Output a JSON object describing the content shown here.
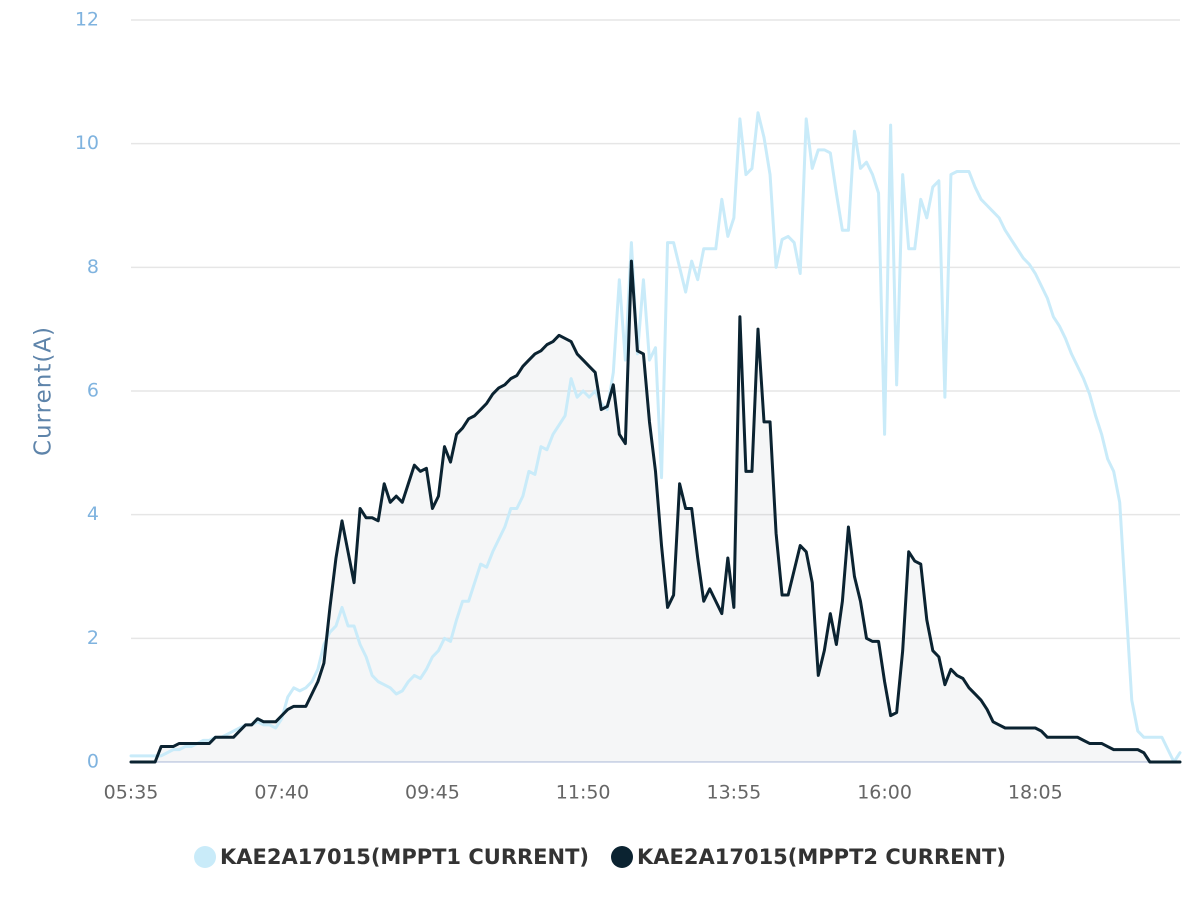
{
  "chart_data": {
    "type": "line",
    "y_label": "Current(A)",
    "categories": [
      "05:35",
      null,
      null,
      null,
      null,
      null,
      null,
      null,
      null,
      null,
      null,
      null,
      null,
      null,
      null,
      null,
      null,
      null,
      null,
      null,
      null,
      null,
      null,
      null,
      null,
      "07:40",
      null,
      null,
      null,
      null,
      null,
      null,
      null,
      null,
      null,
      null,
      null,
      null,
      null,
      null,
      null,
      null,
      null,
      null,
      null,
      null,
      null,
      null,
      null,
      null,
      "09:45",
      null,
      null,
      null,
      null,
      null,
      null,
      null,
      null,
      null,
      null,
      null,
      null,
      null,
      null,
      null,
      null,
      null,
      null,
      null,
      null,
      null,
      null,
      null,
      null,
      "11:50",
      null,
      null,
      null,
      null,
      null,
      null,
      null,
      null,
      null,
      null,
      null,
      null,
      null,
      null,
      null,
      null,
      null,
      null,
      null,
      null,
      null,
      null,
      null,
      null,
      "13:55",
      null,
      null,
      null,
      null,
      null,
      null,
      null,
      null,
      null,
      null,
      null,
      null,
      null,
      null,
      null,
      null,
      null,
      null,
      null,
      null,
      null,
      null,
      null,
      null,
      "16:00",
      null,
      null,
      null,
      null,
      null,
      null,
      null,
      null,
      null,
      null,
      null,
      null,
      null,
      null,
      null,
      null,
      null,
      null,
      null,
      null,
      null,
      null,
      null,
      null,
      "18:05",
      null,
      null,
      null,
      null,
      null,
      null,
      null,
      null,
      null,
      null,
      null,
      null,
      null,
      null,
      null,
      null,
      null,
      null,
      null,
      null,
      null,
      null,
      null,
      null
    ],
    "series": [
      {
        "name": "KAE2A17015(MPPT1 CURRENT)",
        "color": "#c9ebf9",
        "area": false,
        "values": [
          0.1,
          0.1,
          0.1,
          0.1,
          0.1,
          0.1,
          0.15,
          0.2,
          0.2,
          0.25,
          0.25,
          0.3,
          0.35,
          0.35,
          0.4,
          0.4,
          0.45,
          0.5,
          0.55,
          0.6,
          0.6,
          0.65,
          0.6,
          0.6,
          0.55,
          0.7,
          1.05,
          1.2,
          1.15,
          1.2,
          1.3,
          1.5,
          1.9,
          2.1,
          2.2,
          2.5,
          2.2,
          2.2,
          1.9,
          1.7,
          1.4,
          1.3,
          1.25,
          1.2,
          1.1,
          1.15,
          1.3,
          1.4,
          1.35,
          1.5,
          1.7,
          1.8,
          2.0,
          1.95,
          2.3,
          2.6,
          2.6,
          2.9,
          3.2,
          3.15,
          3.4,
          3.6,
          3.8,
          4.1,
          4.1,
          4.3,
          4.7,
          4.65,
          5.1,
          5.05,
          5.3,
          5.45,
          5.6,
          6.2,
          5.9,
          6.0,
          5.9,
          6.0,
          5.8,
          5.7,
          6.3,
          7.8,
          6.5,
          8.4,
          6.6,
          7.8,
          6.5,
          6.7,
          4.6,
          8.4,
          8.4,
          8.0,
          7.6,
          8.1,
          7.8,
          8.3,
          8.3,
          8.3,
          9.1,
          8.5,
          8.8,
          10.4,
          9.5,
          9.6,
          10.5,
          10.1,
          9.5,
          8.0,
          8.45,
          8.5,
          8.4,
          7.9,
          10.4,
          9.6,
          9.9,
          9.9,
          9.85,
          9.2,
          8.6,
          8.6,
          10.2,
          9.6,
          9.7,
          9.5,
          9.2,
          5.3,
          10.3,
          6.1,
          9.5,
          8.3,
          8.3,
          9.1,
          8.8,
          9.3,
          9.4,
          5.9,
          9.5,
          9.55,
          9.55,
          9.55,
          9.3,
          9.1,
          9.0,
          8.9,
          8.8,
          8.6,
          8.45,
          8.3,
          8.15,
          8.05,
          7.9,
          7.7,
          7.5,
          7.2,
          7.05,
          6.85,
          6.6,
          6.4,
          6.2,
          5.95,
          5.6,
          5.3,
          4.9,
          4.7,
          4.2,
          2.6,
          1.0,
          0.5,
          0.4,
          0.4,
          0.4,
          0.4,
          0.2,
          0,
          0.15
        ]
      },
      {
        "name": "KAE2A17015(MPPT2 CURRENT)",
        "color": "#0b2331",
        "area": true,
        "values": [
          0,
          0,
          0,
          0,
          0,
          0.25,
          0.25,
          0.25,
          0.3,
          0.3,
          0.3,
          0.3,
          0.3,
          0.3,
          0.4,
          0.4,
          0.4,
          0.4,
          0.5,
          0.6,
          0.6,
          0.7,
          0.65,
          0.65,
          0.65,
          0.75,
          0.85,
          0.9,
          0.9,
          0.9,
          1.1,
          1.3,
          1.6,
          2.5,
          3.3,
          3.9,
          3.4,
          2.9,
          4.1,
          3.95,
          3.95,
          3.9,
          4.5,
          4.2,
          4.3,
          4.2,
          4.5,
          4.8,
          4.7,
          4.75,
          4.1,
          4.3,
          5.1,
          4.85,
          5.3,
          5.4,
          5.55,
          5.6,
          5.7,
          5.8,
          5.95,
          6.05,
          6.1,
          6.2,
          6.25,
          6.4,
          6.5,
          6.6,
          6.65,
          6.75,
          6.8,
          6.9,
          6.85,
          6.8,
          6.6,
          6.5,
          6.4,
          6.3,
          5.7,
          5.75,
          6.1,
          5.3,
          5.15,
          8.1,
          6.65,
          6.6,
          5.5,
          4.7,
          3.5,
          2.5,
          2.7,
          4.5,
          4.1,
          4.1,
          3.3,
          2.6,
          2.8,
          2.6,
          2.4,
          3.3,
          2.5,
          7.2,
          4.7,
          4.7,
          7.0,
          5.5,
          5.5,
          3.7,
          2.7,
          2.7,
          3.1,
          3.5,
          3.4,
          2.9,
          1.4,
          1.8,
          2.4,
          1.9,
          2.6,
          3.8,
          3.0,
          2.6,
          2.0,
          1.95,
          1.95,
          1.3,
          0.75,
          0.8,
          1.8,
          3.4,
          3.25,
          3.2,
          2.3,
          1.8,
          1.7,
          1.25,
          1.5,
          1.4,
          1.35,
          1.2,
          1.1,
          1.0,
          0.85,
          0.65,
          0.6,
          0.55,
          0.55,
          0.55,
          0.55,
          0.55,
          0.55,
          0.5,
          0.4,
          0.4,
          0.4,
          0.4,
          0.4,
          0.4,
          0.35,
          0.3,
          0.3,
          0.3,
          0.25,
          0.2,
          0.2,
          0.2,
          0.2,
          0.2,
          0.15,
          0,
          0,
          0,
          0,
          0,
          0
        ]
      }
    ],
    "ylim": [
      0,
      12
    ],
    "yticks": [
      0,
      2,
      4,
      6,
      8,
      10,
      12
    ],
    "grid": true,
    "legend": "bottom"
  }
}
